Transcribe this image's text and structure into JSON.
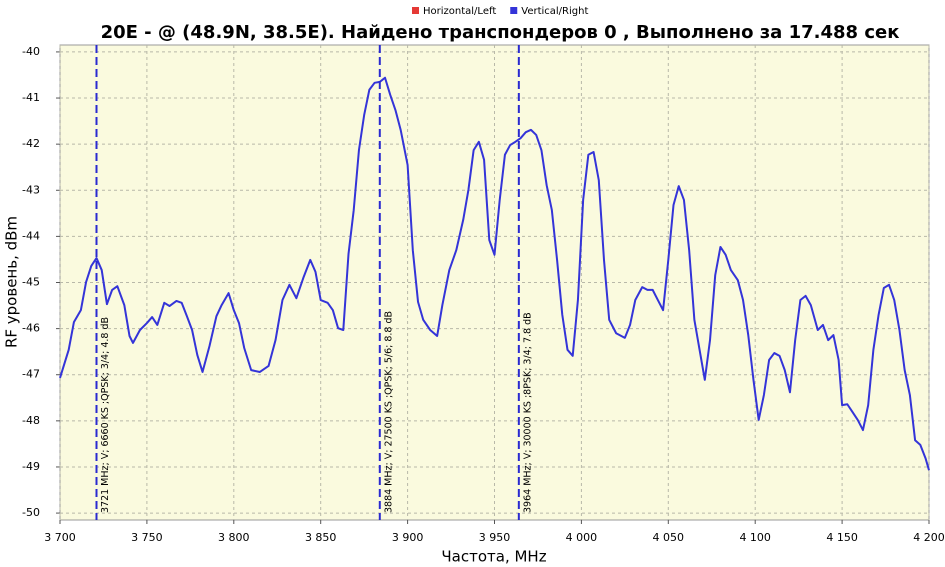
{
  "chart_data": {
    "type": "line",
    "title": "20E -  @  (48.9N, 38.5E). Найдено транспондеров 0 , Выполнено за 17.488 сек",
    "x_label": "Частота, MHz",
    "y_label": "RF уровень, dBm",
    "legend": "top",
    "grid": true,
    "xlim": [
      3700,
      4200
    ],
    "ylim": [
      -50.15,
      -39.85
    ],
    "xticks": [
      {
        "value": 3700,
        "label": "3 700"
      },
      {
        "value": 3750,
        "label": "3 750"
      },
      {
        "value": 3800,
        "label": "3 800"
      },
      {
        "value": 3850,
        "label": "3 850"
      },
      {
        "value": 3900,
        "label": "3 900"
      },
      {
        "value": 3950,
        "label": "3 950"
      },
      {
        "value": 4000,
        "label": "4 000"
      },
      {
        "value": 4050,
        "label": "4 050"
      },
      {
        "value": 4100,
        "label": "4 100"
      },
      {
        "value": 4150,
        "label": "4 150"
      },
      {
        "value": 4200,
        "label": "4 200"
      }
    ],
    "yticks": [
      -40,
      -41,
      -42,
      -43,
      -44,
      -45,
      -46,
      -47,
      -48,
      -49,
      -50
    ],
    "x": [
      3700,
      3705,
      3708,
      3712,
      3715,
      3718,
      3721,
      3724,
      3727,
      3730,
      3733,
      3737,
      3740,
      3742,
      3746,
      3750,
      3753,
      3756,
      3760,
      3763,
      3767,
      3770,
      3773,
      3776,
      3779,
      3782,
      3786,
      3790,
      3793,
      3797,
      3800,
      3803,
      3806,
      3810,
      3815,
      3820,
      3824,
      3828,
      3832,
      3836,
      3840,
      3844,
      3847,
      3850,
      3854,
      3857,
      3860,
      3863,
      3866,
      3869,
      3872,
      3875,
      3878,
      3881,
      3884,
      3887,
      3890,
      3893,
      3896,
      3900,
      3903,
      3906,
      3909,
      3913,
      3917,
      3920,
      3924,
      3928,
      3932,
      3935,
      3938,
      3941,
      3944,
      3947,
      3950,
      3953,
      3956,
      3959,
      3962,
      3965,
      3968,
      3971,
      3974,
      3977,
      3980,
      3983,
      3986,
      3989,
      3992,
      3995,
      3998,
      4001,
      4004,
      4007,
      4010,
      4013,
      4016,
      4020,
      4025,
      4028,
      4031,
      4035,
      4038,
      4041,
      4044,
      4047,
      4050,
      4053,
      4056,
      4059,
      4062,
      4065,
      4068,
      4071,
      4074,
      4077,
      4080,
      4083,
      4086,
      4090,
      4093,
      4096,
      4099,
      4102,
      4105,
      4108,
      4111,
      4114,
      4117,
      4120,
      4123,
      4126,
      4129,
      4132,
      4136,
      4139,
      4142,
      4145,
      4148,
      4150,
      4153,
      4156,
      4159,
      4162,
      4165,
      4168,
      4171,
      4174,
      4177,
      4180,
      4183,
      4186,
      4189,
      4192,
      4195,
      4198,
      4200
    ],
    "series": [
      {
        "name": "Horizontal/Left",
        "color": "#e53935",
        "values": [
          null,
          null,
          null,
          null,
          null,
          null,
          null,
          null,
          null,
          null,
          null,
          null,
          null,
          null,
          null,
          null,
          null,
          null,
          null,
          null,
          null,
          null,
          null,
          null,
          null,
          null,
          null,
          null,
          null,
          null,
          null,
          null,
          null,
          null,
          null,
          null,
          null,
          null,
          null,
          null,
          null,
          null,
          null,
          null,
          null,
          null,
          null,
          null,
          null,
          null,
          null,
          null,
          null,
          null,
          null,
          null,
          null,
          null,
          null,
          null,
          null,
          null,
          null,
          null,
          null,
          null,
          null,
          null,
          null,
          null,
          null,
          null,
          null,
          null,
          null,
          null,
          null,
          null,
          null,
          null,
          null,
          null,
          null,
          null,
          null,
          null,
          null,
          null,
          null,
          null,
          null,
          null,
          null,
          null,
          null,
          null,
          null,
          null,
          null,
          null,
          null,
          null,
          null,
          null,
          null,
          null,
          null,
          null,
          null,
          null,
          null,
          null,
          null,
          null,
          null,
          null,
          null,
          null,
          null,
          null,
          null,
          null,
          null,
          null,
          null,
          null,
          null,
          null,
          null,
          null,
          null,
          null,
          null,
          null,
          null,
          null,
          null,
          null,
          null,
          null,
          null,
          null,
          null,
          null,
          null,
          null,
          null,
          null,
          null,
          null,
          null,
          null,
          null,
          null,
          null,
          null,
          null
        ]
      },
      {
        "name": "Vertical/Right",
        "color": "#3434d8",
        "values": [
          -47.07,
          -46.46,
          -45.86,
          -45.6,
          -44.99,
          -44.64,
          -44.47,
          -44.73,
          -45.47,
          -45.16,
          -45.08,
          -45.49,
          -46.16,
          -46.31,
          -46.03,
          -45.88,
          -45.75,
          -45.92,
          -45.44,
          -45.51,
          -45.4,
          -45.44,
          -45.73,
          -46.03,
          -46.57,
          -46.94,
          -46.38,
          -45.73,
          -45.49,
          -45.23,
          -45.6,
          -45.88,
          -46.42,
          -46.9,
          -46.94,
          -46.81,
          -46.25,
          -45.38,
          -45.05,
          -45.34,
          -44.9,
          -44.51,
          -44.77,
          -45.38,
          -45.44,
          -45.6,
          -45.99,
          -46.03,
          -44.38,
          -43.43,
          -42.13,
          -41.37,
          -40.82,
          -40.67,
          -40.65,
          -40.56,
          -40.93,
          -41.26,
          -41.69,
          -42.45,
          -44.3,
          -45.42,
          -45.81,
          -46.03,
          -46.16,
          -45.49,
          -44.73,
          -44.3,
          -43.64,
          -42.99,
          -42.13,
          -41.95,
          -42.34,
          -44.08,
          -44.4,
          -43.21,
          -42.23,
          -42.02,
          -41.95,
          -41.87,
          -41.74,
          -41.69,
          -41.8,
          -42.13,
          -42.89,
          -43.43,
          -44.51,
          -45.7,
          -46.46,
          -46.59,
          -45.38,
          -43.21,
          -42.23,
          -42.17,
          -42.78,
          -44.51,
          -45.81,
          -46.1,
          -46.2,
          -45.92,
          -45.38,
          -45.1,
          -45.16,
          -45.16,
          -45.38,
          -45.6,
          -44.51,
          -43.32,
          -42.91,
          -43.21,
          -44.3,
          -45.81,
          -46.46,
          -47.11,
          -46.25,
          -44.84,
          -44.23,
          -44.4,
          -44.73,
          -44.95,
          -45.38,
          -46.14,
          -47.11,
          -47.98,
          -47.44,
          -46.68,
          -46.53,
          -46.59,
          -46.9,
          -47.38,
          -46.25,
          -45.38,
          -45.29,
          -45.49,
          -46.03,
          -45.92,
          -46.25,
          -46.14,
          -46.68,
          -47.66,
          -47.64,
          -47.81,
          -47.98,
          -48.2,
          -47.66,
          -46.46,
          -45.7,
          -45.12,
          -45.05,
          -45.38,
          -46.03,
          -46.9,
          -47.44,
          -48.42,
          -48.52,
          -48.81,
          -49.07
        ]
      }
    ],
    "annotations": [
      {
        "x": 3721,
        "text": "3721 MHz; V; 6660 KS ;QPSK; 3/4; 4.8 dB"
      },
      {
        "x": 3884,
        "text": "3884 MHz; V; 27500 KS ;QPSK; 5/6; 8.8 dB"
      },
      {
        "x": 3964,
        "text": "3964 MHz; V; 30000 KS ;8PSK; 3/4; 7.8 dB"
      }
    ]
  }
}
